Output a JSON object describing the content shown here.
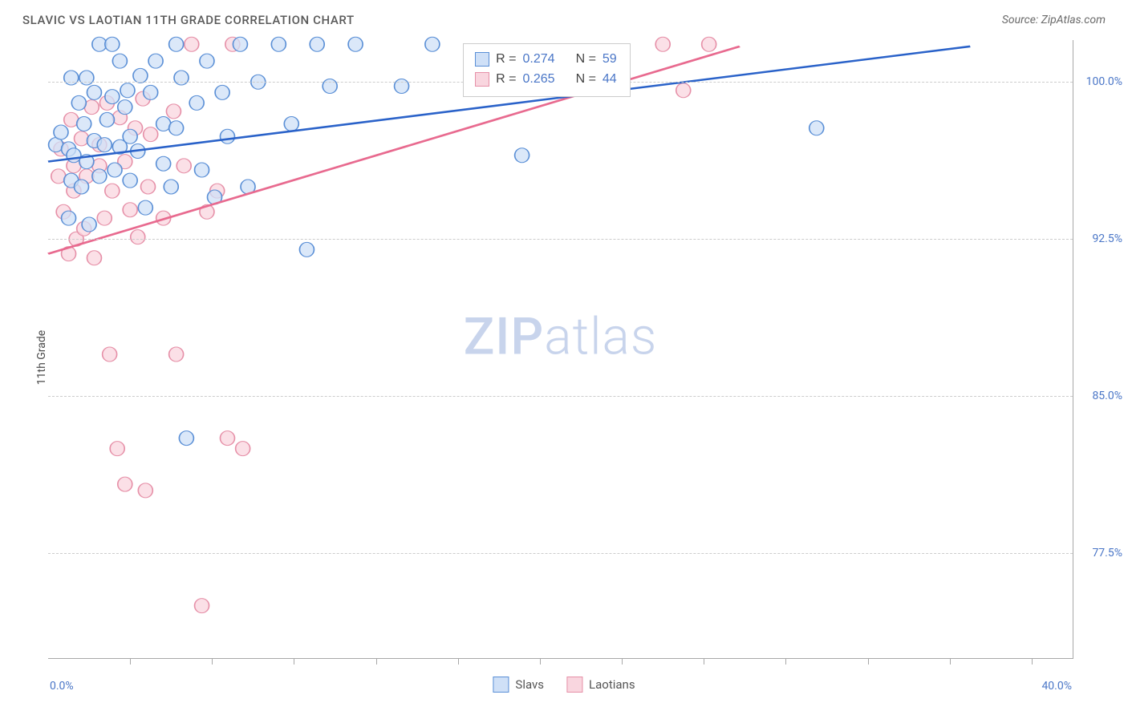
{
  "header": {
    "title": "SLAVIC VS LAOTIAN 11TH GRADE CORRELATION CHART",
    "source": "Source: ZipAtlas.com"
  },
  "axes": {
    "y_label": "11th Grade",
    "x_min": 0.0,
    "x_max": 40.0,
    "x_label_min": "0.0%",
    "x_label_max": "40.0%",
    "y_min": 72.5,
    "y_max": 102.0,
    "y_ticks": [
      77.5,
      85.0,
      92.5,
      100.0
    ],
    "y_tick_labels": [
      "77.5%",
      "85.0%",
      "92.5%",
      "100.0%"
    ],
    "x_minor_ticks": [
      3.2,
      6.4,
      9.6,
      12.8,
      16.0,
      19.2,
      22.4,
      25.6,
      28.8,
      32.0,
      35.2,
      38.4
    ]
  },
  "watermark": {
    "zip": "ZIP",
    "atlas": "atlas"
  },
  "stats_box": {
    "left_pct": 40.5,
    "top_pct": 0.5,
    "rows": [
      {
        "swatch_fill": "#cfe0f7",
        "swatch_stroke": "#5a8fd6",
        "r": "0.274",
        "n": "59"
      },
      {
        "swatch_fill": "#f9d6df",
        "swatch_stroke": "#e690a8",
        "r": "0.265",
        "n": "44"
      }
    ],
    "labels": {
      "r": "R =",
      "n": "N ="
    }
  },
  "legend": {
    "items": [
      {
        "label": "Slavs",
        "swatch_fill": "#cfe0f7",
        "swatch_stroke": "#5a8fd6"
      },
      {
        "label": "Laotians",
        "swatch_fill": "#f9d6df",
        "swatch_stroke": "#e690a8"
      }
    ]
  },
  "series": {
    "slavs": {
      "color_fill": "#cfe0f7",
      "color_stroke": "#5a8fd6",
      "line_color": "#2a62c9",
      "marker_r": 9,
      "line_width": 2.5,
      "trendline": {
        "x1": 0.0,
        "y1": 96.2,
        "x2": 36.0,
        "y2": 101.7
      },
      "points": [
        [
          0.3,
          97.0
        ],
        [
          0.5,
          97.6
        ],
        [
          0.8,
          93.5
        ],
        [
          0.8,
          96.8
        ],
        [
          0.9,
          95.3
        ],
        [
          0.9,
          100.2
        ],
        [
          1.0,
          96.5
        ],
        [
          1.2,
          99.0
        ],
        [
          1.3,
          95.0
        ],
        [
          1.4,
          98.0
        ],
        [
          1.5,
          100.2
        ],
        [
          1.5,
          96.2
        ],
        [
          1.6,
          93.2
        ],
        [
          1.8,
          97.2
        ],
        [
          1.8,
          99.5
        ],
        [
          2.0,
          95.5
        ],
        [
          2.0,
          101.8
        ],
        [
          2.2,
          97.0
        ],
        [
          2.3,
          98.2
        ],
        [
          2.5,
          101.8
        ],
        [
          2.5,
          99.3
        ],
        [
          2.6,
          95.8
        ],
        [
          2.8,
          101.0
        ],
        [
          2.8,
          96.9
        ],
        [
          3.0,
          98.8
        ],
        [
          3.1,
          99.6
        ],
        [
          3.2,
          95.3
        ],
        [
          3.2,
          97.4
        ],
        [
          3.5,
          96.7
        ],
        [
          3.6,
          100.3
        ],
        [
          3.8,
          94.0
        ],
        [
          4.0,
          99.5
        ],
        [
          4.2,
          101.0
        ],
        [
          4.5,
          98.0
        ],
        [
          4.5,
          96.1
        ],
        [
          4.8,
          95.0
        ],
        [
          5.0,
          101.8
        ],
        [
          5.0,
          97.8
        ],
        [
          5.2,
          100.2
        ],
        [
          5.4,
          83.0
        ],
        [
          5.8,
          99.0
        ],
        [
          6.0,
          95.8
        ],
        [
          6.2,
          101.0
        ],
        [
          6.5,
          94.5
        ],
        [
          6.8,
          99.5
        ],
        [
          7.0,
          97.4
        ],
        [
          7.5,
          101.8
        ],
        [
          7.8,
          95.0
        ],
        [
          8.2,
          100.0
        ],
        [
          9.0,
          101.8
        ],
        [
          9.5,
          98.0
        ],
        [
          10.1,
          92.0
        ],
        [
          10.5,
          101.8
        ],
        [
          11.0,
          99.8
        ],
        [
          12.0,
          101.8
        ],
        [
          13.8,
          99.8
        ],
        [
          15.0,
          101.8
        ],
        [
          18.5,
          96.5
        ],
        [
          30.0,
          97.8
        ]
      ]
    },
    "laotians": {
      "color_fill": "#f9d6df",
      "color_stroke": "#e690a8",
      "line_color": "#e86a8f",
      "marker_r": 9,
      "line_width": 2.5,
      "trendline": {
        "x1": 0.0,
        "y1": 91.8,
        "x2": 27.0,
        "y2": 101.7
      },
      "points": [
        [
          0.4,
          95.5
        ],
        [
          0.5,
          96.8
        ],
        [
          0.6,
          93.8
        ],
        [
          0.8,
          91.8
        ],
        [
          0.9,
          98.2
        ],
        [
          1.0,
          94.8
        ],
        [
          1.0,
          96.0
        ],
        [
          1.1,
          92.5
        ],
        [
          1.3,
          97.3
        ],
        [
          1.4,
          93.0
        ],
        [
          1.5,
          95.5
        ],
        [
          1.7,
          98.8
        ],
        [
          1.8,
          91.6
        ],
        [
          2.0,
          97.0
        ],
        [
          2.0,
          96.0
        ],
        [
          2.2,
          93.5
        ],
        [
          2.3,
          99.0
        ],
        [
          2.4,
          87.0
        ],
        [
          2.5,
          94.8
        ],
        [
          2.7,
          82.5
        ],
        [
          2.8,
          98.3
        ],
        [
          3.0,
          80.8
        ],
        [
          3.0,
          96.2
        ],
        [
          3.2,
          93.9
        ],
        [
          3.4,
          97.8
        ],
        [
          3.5,
          92.6
        ],
        [
          3.7,
          99.2
        ],
        [
          3.8,
          80.5
        ],
        [
          3.9,
          95.0
        ],
        [
          4.0,
          97.5
        ],
        [
          4.5,
          93.5
        ],
        [
          4.9,
          98.6
        ],
        [
          5.0,
          87.0
        ],
        [
          5.3,
          96.0
        ],
        [
          5.6,
          101.8
        ],
        [
          6.0,
          75.0
        ],
        [
          6.2,
          93.8
        ],
        [
          6.6,
          94.8
        ],
        [
          7.0,
          83.0
        ],
        [
          7.2,
          101.8
        ],
        [
          7.6,
          82.5
        ],
        [
          24.0,
          101.8
        ],
        [
          24.8,
          99.6
        ],
        [
          25.8,
          101.8
        ]
      ]
    }
  },
  "colors": {
    "axis": "#a8a8a8",
    "grid": "#cccccc",
    "text_muted": "#5a5a5a",
    "tick_label": "#4a76c7"
  }
}
